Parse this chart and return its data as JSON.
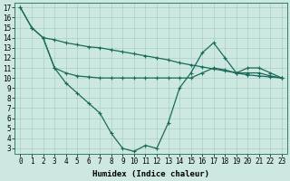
{
  "xlabel": "Humidex (Indice chaleur)",
  "background_color": "#cce8e0",
  "line_color": "#1a6b5a",
  "grid_color": "#aacfc8",
  "line1_x": [
    0,
    1,
    2,
    3,
    4,
    5,
    6,
    7,
    8,
    9,
    10,
    11,
    12,
    13,
    14,
    15,
    16,
    17,
    18,
    19,
    20,
    21,
    22,
    23
  ],
  "line1_y": [
    17,
    15,
    14,
    13.8,
    13.5,
    13.3,
    13.1,
    13.0,
    12.8,
    12.6,
    12.4,
    12.2,
    12.0,
    11.8,
    11.5,
    11.3,
    11.1,
    10.9,
    10.7,
    10.5,
    10.3,
    10.2,
    10.1,
    10.0
  ],
  "line2_x": [
    2,
    3,
    4,
    5,
    6,
    7,
    8,
    9,
    10,
    11,
    12,
    13,
    14,
    15,
    16,
    17,
    18,
    19,
    20,
    21,
    22,
    23
  ],
  "line2_y": [
    14,
    11,
    10.5,
    10.2,
    10.1,
    10.0,
    10.0,
    10.0,
    10.0,
    10.0,
    10.0,
    10.0,
    10.0,
    10.0,
    10.5,
    11.0,
    10.8,
    10.5,
    10.5,
    10.5,
    10.2,
    10.0
  ],
  "line3_x": [
    0,
    1,
    2,
    3,
    4,
    5,
    6,
    7,
    8,
    9,
    10,
    11,
    12,
    13,
    14,
    15,
    16,
    17,
    18,
    19,
    20,
    21,
    22,
    23
  ],
  "line3_y": [
    17,
    15,
    14,
    11,
    9.5,
    8.5,
    7.5,
    6.5,
    4.5,
    3.0,
    2.7,
    3.3,
    3.0,
    5.5,
    9.0,
    10.5,
    12.5,
    13.5,
    12.0,
    10.5,
    11.0,
    11.0,
    10.5,
    10.0
  ],
  "xlim": [
    -0.5,
    23.5
  ],
  "ylim": [
    2.5,
    17.5
  ],
  "yticks": [
    3,
    4,
    5,
    6,
    7,
    8,
    9,
    10,
    11,
    12,
    13,
    14,
    15,
    16,
    17
  ],
  "xticks": [
    0,
    1,
    2,
    3,
    4,
    5,
    6,
    7,
    8,
    9,
    10,
    11,
    12,
    13,
    14,
    15,
    16,
    17,
    18,
    19,
    20,
    21,
    22,
    23
  ],
  "tick_fontsize": 5.5,
  "xlabel_fontsize": 6.5,
  "marker": "+",
  "markersize": 3.5,
  "linewidth": 0.9
}
